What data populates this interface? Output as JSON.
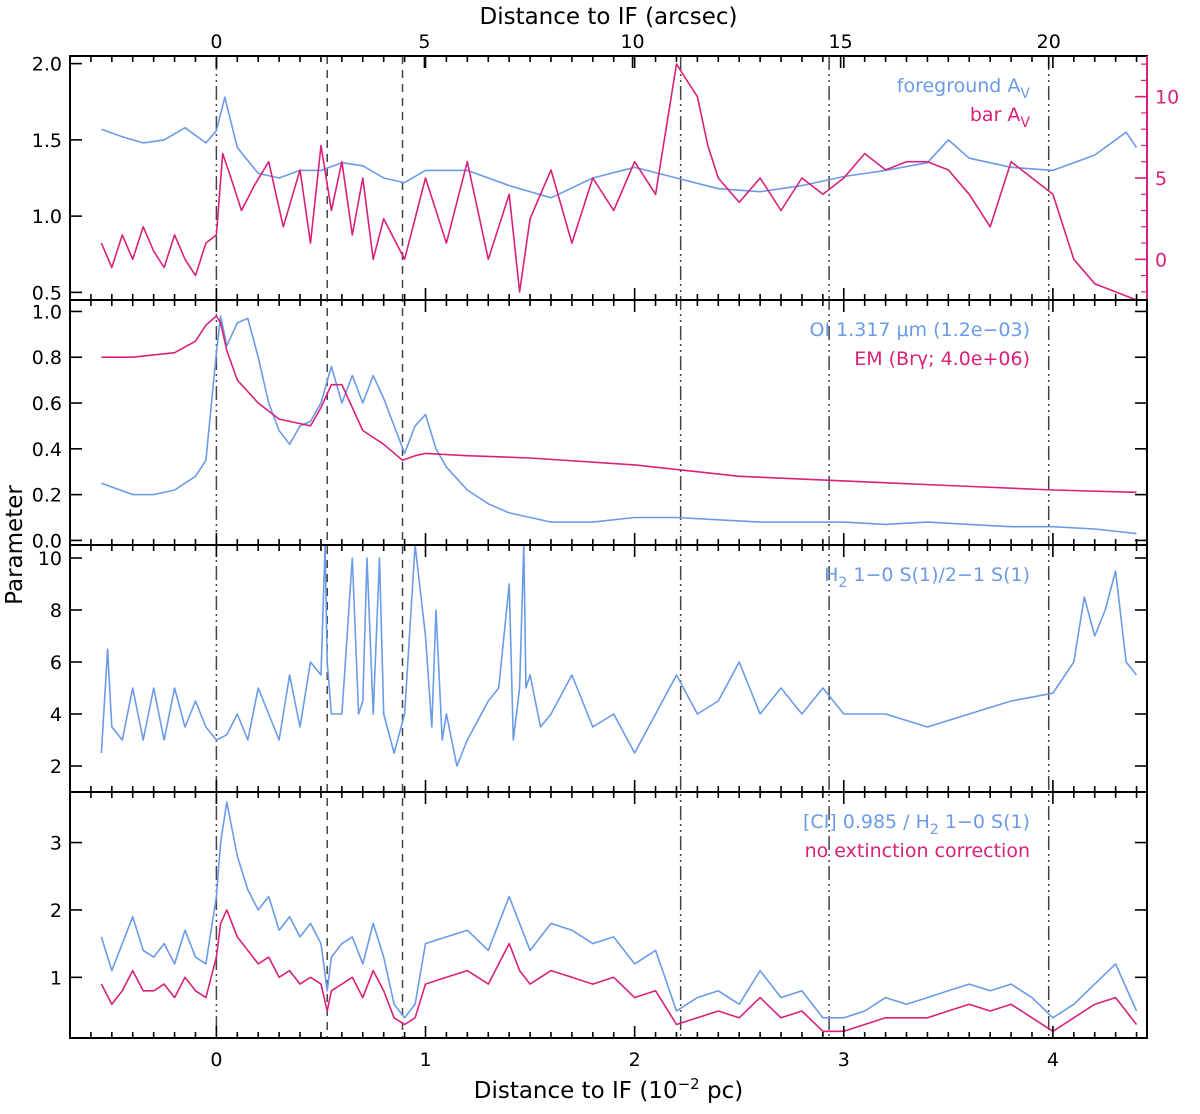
{
  "chart_data": {
    "type": "line",
    "top_xlabel": "Distance to IF (arcsec)",
    "bottom_xlabel": "Distance to IF (10",
    "bottom_xlabel_exp": "−2",
    "bottom_xlabel_tail": " pc)",
    "ylabel": "Parameter",
    "xlim": [
      -0.7,
      4.45
    ],
    "x_ticks": [
      "0",
      "1",
      "2",
      "3",
      "4"
    ],
    "top_ticks": [
      "0",
      "5",
      "10",
      "15",
      "20"
    ],
    "colors": {
      "blue": "#6b9be8",
      "magenta": "#d9217a"
    },
    "vlines": [
      {
        "x": 0.0,
        "style": "dot-dash"
      },
      {
        "x": 0.53,
        "style": "dashed"
      },
      {
        "x": 0.89,
        "style": "dashed"
      },
      {
        "x": 2.22,
        "style": "dot-dash"
      },
      {
        "x": 2.93,
        "style": "dot-dash"
      },
      {
        "x": 3.98,
        "style": "dot-dash"
      }
    ],
    "panels": [
      {
        "name": "extinction",
        "ylim": [
          0.45,
          2.05
        ],
        "yticks": [
          "0.5",
          "1.0",
          "1.5",
          "2.0"
        ],
        "right_ylim": [
          -2.5,
          12.5
        ],
        "right_yticks": [
          "0",
          "5",
          "10"
        ],
        "legend": [
          {
            "text": "foreground A",
            "sub": "V",
            "color": "blue"
          },
          {
            "text": "bar A",
            "sub": "V",
            "color": "magenta"
          }
        ],
        "series": [
          {
            "color": "blue",
            "axis": "left",
            "x": [
              -0.55,
              -0.45,
              -0.35,
              -0.25,
              -0.15,
              -0.05,
              0.0,
              0.04,
              0.1,
              0.2,
              0.3,
              0.4,
              0.5,
              0.6,
              0.7,
              0.8,
              0.9,
              1.0,
              1.2,
              1.4,
              1.6,
              1.8,
              2.0,
              2.2,
              2.4,
              2.6,
              2.8,
              3.0,
              3.2,
              3.4,
              3.5,
              3.6,
              3.8,
              4.0,
              4.2,
              4.35,
              4.4
            ],
            "y": [
              1.57,
              1.52,
              1.48,
              1.5,
              1.58,
              1.48,
              1.56,
              1.78,
              1.45,
              1.28,
              1.25,
              1.3,
              1.3,
              1.35,
              1.33,
              1.25,
              1.22,
              1.3,
              1.3,
              1.2,
              1.12,
              1.25,
              1.32,
              1.25,
              1.18,
              1.16,
              1.2,
              1.26,
              1.3,
              1.35,
              1.5,
              1.38,
              1.32,
              1.3,
              1.4,
              1.55,
              1.45
            ]
          },
          {
            "color": "magenta",
            "axis": "right",
            "x": [
              -0.55,
              -0.5,
              -0.45,
              -0.4,
              -0.35,
              -0.3,
              -0.25,
              -0.2,
              -0.15,
              -0.1,
              -0.05,
              0.0,
              0.03,
              0.07,
              0.12,
              0.18,
              0.25,
              0.32,
              0.4,
              0.45,
              0.5,
              0.55,
              0.6,
              0.65,
              0.7,
              0.75,
              0.8,
              0.9,
              1.0,
              1.1,
              1.2,
              1.3,
              1.4,
              1.45,
              1.5,
              1.6,
              1.7,
              1.8,
              1.9,
              2.0,
              2.1,
              2.15,
              2.2,
              2.25,
              2.3,
              2.35,
              2.4,
              2.5,
              2.6,
              2.7,
              2.8,
              2.9,
              3.0,
              3.1,
              3.2,
              3.3,
              3.4,
              3.5,
              3.6,
              3.7,
              3.8,
              3.9,
              4.0,
              4.1,
              4.2,
              4.3,
              4.4
            ],
            "y": [
              1.0,
              -0.5,
              1.5,
              0.0,
              2.0,
              0.5,
              -0.5,
              1.5,
              0.0,
              -1.0,
              1.0,
              1.5,
              6.5,
              5.0,
              3.0,
              4.5,
              6.0,
              2.0,
              5.5,
              1.0,
              7.0,
              3.0,
              6.0,
              1.5,
              5.0,
              0.0,
              2.5,
              0.0,
              5.0,
              1.0,
              6.0,
              0.0,
              4.0,
              -2.0,
              2.5,
              5.5,
              1.0,
              5.0,
              3.0,
              6.0,
              4.0,
              8.0,
              12.0,
              11.0,
              10.0,
              7.0,
              5.0,
              3.5,
              5.0,
              3.0,
              5.0,
              4.0,
              5.0,
              6.5,
              5.5,
              6.0,
              6.0,
              5.5,
              4.0,
              2.0,
              6.0,
              5.0,
              4.0,
              0.0,
              -1.5,
              -2.0,
              -3.0
            ]
          }
        ]
      },
      {
        "name": "oi-em",
        "ylim": [
          -0.02,
          1.05
        ],
        "yticks": [
          "0.0",
          "0.2",
          "0.4",
          "0.6",
          "0.8",
          "1.0"
        ],
        "legend": [
          {
            "text": "OI 1.317 μm  (1.2e−03)",
            "color": "blue"
          },
          {
            "text": "EM (Brγ; 4.0e+06)",
            "color": "magenta"
          }
        ],
        "series": [
          {
            "color": "blue",
            "axis": "left",
            "x": [
              -0.55,
              -0.4,
              -0.3,
              -0.2,
              -0.1,
              -0.05,
              0.0,
              0.02,
              0.05,
              0.1,
              0.15,
              0.2,
              0.25,
              0.3,
              0.35,
              0.4,
              0.45,
              0.5,
              0.55,
              0.6,
              0.65,
              0.7,
              0.75,
              0.8,
              0.85,
              0.9,
              0.95,
              1.0,
              1.05,
              1.1,
              1.2,
              1.3,
              1.4,
              1.5,
              1.6,
              1.8,
              2.0,
              2.2,
              2.4,
              2.6,
              2.8,
              3.0,
              3.2,
              3.4,
              3.6,
              3.8,
              4.0,
              4.2,
              4.4
            ],
            "y": [
              0.25,
              0.2,
              0.2,
              0.22,
              0.28,
              0.35,
              0.82,
              0.98,
              0.85,
              0.95,
              0.97,
              0.8,
              0.6,
              0.48,
              0.42,
              0.5,
              0.52,
              0.6,
              0.76,
              0.6,
              0.72,
              0.6,
              0.72,
              0.62,
              0.5,
              0.38,
              0.5,
              0.55,
              0.4,
              0.32,
              0.22,
              0.16,
              0.12,
              0.1,
              0.08,
              0.08,
              0.1,
              0.1,
              0.09,
              0.08,
              0.08,
              0.08,
              0.07,
              0.08,
              0.07,
              0.06,
              0.06,
              0.05,
              0.03
            ]
          },
          {
            "color": "magenta",
            "axis": "left",
            "x": [
              -0.55,
              -0.4,
              -0.2,
              -0.1,
              -0.05,
              0.0,
              0.02,
              0.05,
              0.1,
              0.2,
              0.3,
              0.4,
              0.45,
              0.5,
              0.55,
              0.6,
              0.65,
              0.7,
              0.8,
              0.89,
              0.95,
              1.0,
              1.2,
              1.5,
              2.0,
              2.5,
              3.0,
              3.5,
              4.0,
              4.4
            ],
            "y": [
              0.8,
              0.8,
              0.82,
              0.87,
              0.94,
              0.98,
              0.95,
              0.83,
              0.7,
              0.6,
              0.53,
              0.51,
              0.5,
              0.58,
              0.68,
              0.68,
              0.58,
              0.48,
              0.42,
              0.35,
              0.37,
              0.38,
              0.37,
              0.36,
              0.33,
              0.28,
              0.26,
              0.24,
              0.22,
              0.21
            ]
          }
        ]
      },
      {
        "name": "h2-ratio",
        "ylim": [
          1.0,
          10.5
        ],
        "yticks": [
          "2",
          "4",
          "6",
          "8",
          "10"
        ],
        "legend": [
          {
            "text": "H",
            "sub": "2",
            "tail": " 1−0 S(1)/2−1 S(1)",
            "color": "blue"
          }
        ],
        "series": [
          {
            "color": "blue",
            "axis": "left",
            "x": [
              -0.55,
              -0.52,
              -0.5,
              -0.45,
              -0.4,
              -0.35,
              -0.3,
              -0.25,
              -0.2,
              -0.15,
              -0.1,
              -0.05,
              0.0,
              0.05,
              0.1,
              0.15,
              0.2,
              0.3,
              0.35,
              0.4,
              0.45,
              0.5,
              0.52,
              0.53,
              0.55,
              0.6,
              0.65,
              0.68,
              0.7,
              0.72,
              0.75,
              0.78,
              0.8,
              0.85,
              0.9,
              0.95,
              1.0,
              1.03,
              1.05,
              1.08,
              1.1,
              1.15,
              1.2,
              1.3,
              1.35,
              1.4,
              1.42,
              1.45,
              1.47,
              1.48,
              1.5,
              1.55,
              1.6,
              1.7,
              1.8,
              1.9,
              2.0,
              2.1,
              2.2,
              2.3,
              2.4,
              2.5,
              2.6,
              2.7,
              2.8,
              2.9,
              3.0,
              3.2,
              3.4,
              3.6,
              3.8,
              4.0,
              4.1,
              4.15,
              4.2,
              4.25,
              4.3,
              4.35,
              4.4
            ],
            "y": [
              2.5,
              6.5,
              3.5,
              3.0,
              5.0,
              3.0,
              5.0,
              3.0,
              5.0,
              3.5,
              4.5,
              3.5,
              3.0,
              3.2,
              4.0,
              3.0,
              5.0,
              3.0,
              5.5,
              3.5,
              6.0,
              5.5,
              10.5,
              6.0,
              4.0,
              4.0,
              10.0,
              4.0,
              4.5,
              10.0,
              4.0,
              10.0,
              4.0,
              2.5,
              4.0,
              10.5,
              7.0,
              3.5,
              8.0,
              3.0,
              4.0,
              2.0,
              3.0,
              4.5,
              5.0,
              9.0,
              3.0,
              5.0,
              10.5,
              5.0,
              5.5,
              3.5,
              4.0,
              5.5,
              3.5,
              4.0,
              2.5,
              4.0,
              5.5,
              4.0,
              4.5,
              6.0,
              4.0,
              5.0,
              4.0,
              5.0,
              4.0,
              4.0,
              3.5,
              4.0,
              4.5,
              4.8,
              6.0,
              8.5,
              7.0,
              8.0,
              9.5,
              6.0,
              5.5
            ]
          }
        ]
      },
      {
        "name": "ci-ratio",
        "ylim": [
          0.1,
          3.75
        ],
        "yticks": [
          "1",
          "2",
          "3"
        ],
        "legend": [
          {
            "text": "[CI] 0.985 / H",
            "sub": "2",
            "tail": " 1−0 S(1)",
            "color": "blue"
          },
          {
            "text": "no extinction correction",
            "color": "magenta"
          }
        ],
        "series": [
          {
            "color": "blue",
            "axis": "left",
            "x": [
              -0.55,
              -0.5,
              -0.45,
              -0.4,
              -0.35,
              -0.3,
              -0.25,
              -0.2,
              -0.15,
              -0.1,
              -0.05,
              0.0,
              0.02,
              0.05,
              0.1,
              0.15,
              0.2,
              0.25,
              0.3,
              0.35,
              0.4,
              0.45,
              0.5,
              0.53,
              0.55,
              0.6,
              0.65,
              0.7,
              0.75,
              0.8,
              0.85,
              0.9,
              0.95,
              1.0,
              1.1,
              1.2,
              1.3,
              1.4,
              1.45,
              1.5,
              1.6,
              1.7,
              1.8,
              1.9,
              2.0,
              2.1,
              2.2,
              2.3,
              2.4,
              2.5,
              2.6,
              2.7,
              2.8,
              2.9,
              3.0,
              3.1,
              3.2,
              3.3,
              3.4,
              3.5,
              3.6,
              3.7,
              3.8,
              3.9,
              4.0,
              4.1,
              4.2,
              4.3,
              4.4
            ],
            "y": [
              1.6,
              1.1,
              1.5,
              1.9,
              1.4,
              1.3,
              1.5,
              1.2,
              1.7,
              1.3,
              1.2,
              2.2,
              3.0,
              3.6,
              2.8,
              2.3,
              2.0,
              2.2,
              1.7,
              1.9,
              1.6,
              1.8,
              1.5,
              0.8,
              1.3,
              1.5,
              1.6,
              1.2,
              1.8,
              1.3,
              0.6,
              0.4,
              0.6,
              1.5,
              1.6,
              1.7,
              1.4,
              2.2,
              1.8,
              1.4,
              1.8,
              1.7,
              1.5,
              1.6,
              1.2,
              1.4,
              0.5,
              0.7,
              0.8,
              0.6,
              1.1,
              0.7,
              0.8,
              0.4,
              0.4,
              0.5,
              0.7,
              0.6,
              0.7,
              0.8,
              0.9,
              0.8,
              0.9,
              0.7,
              0.4,
              0.6,
              0.9,
              1.2,
              0.5
            ]
          },
          {
            "color": "magenta",
            "axis": "left",
            "x": [
              -0.55,
              -0.5,
              -0.45,
              -0.4,
              -0.35,
              -0.3,
              -0.25,
              -0.2,
              -0.15,
              -0.1,
              -0.05,
              0.0,
              0.02,
              0.05,
              0.1,
              0.15,
              0.2,
              0.25,
              0.3,
              0.35,
              0.4,
              0.45,
              0.5,
              0.53,
              0.55,
              0.6,
              0.65,
              0.7,
              0.75,
              0.8,
              0.85,
              0.9,
              0.95,
              1.0,
              1.1,
              1.2,
              1.3,
              1.4,
              1.45,
              1.5,
              1.6,
              1.7,
              1.8,
              1.9,
              2.0,
              2.1,
              2.2,
              2.3,
              2.4,
              2.5,
              2.6,
              2.7,
              2.8,
              2.9,
              3.0,
              3.1,
              3.2,
              3.3,
              3.4,
              3.5,
              3.6,
              3.7,
              3.8,
              3.9,
              4.0,
              4.1,
              4.2,
              4.3,
              4.4
            ],
            "y": [
              0.9,
              0.6,
              0.8,
              1.1,
              0.8,
              0.8,
              0.9,
              0.7,
              1.0,
              0.8,
              0.7,
              1.3,
              1.8,
              2.0,
              1.6,
              1.4,
              1.2,
              1.3,
              1.0,
              1.1,
              0.9,
              1.0,
              0.9,
              0.5,
              0.8,
              0.9,
              1.0,
              0.7,
              1.1,
              0.8,
              0.4,
              0.3,
              0.4,
              0.9,
              1.0,
              1.1,
              0.9,
              1.5,
              1.1,
              0.9,
              1.1,
              1.0,
              0.9,
              1.0,
              0.7,
              0.8,
              0.3,
              0.4,
              0.5,
              0.4,
              0.7,
              0.4,
              0.5,
              0.2,
              0.2,
              0.3,
              0.4,
              0.4,
              0.4,
              0.5,
              0.6,
              0.5,
              0.6,
              0.4,
              0.2,
              0.4,
              0.6,
              0.7,
              0.3
            ]
          }
        ]
      }
    ]
  }
}
